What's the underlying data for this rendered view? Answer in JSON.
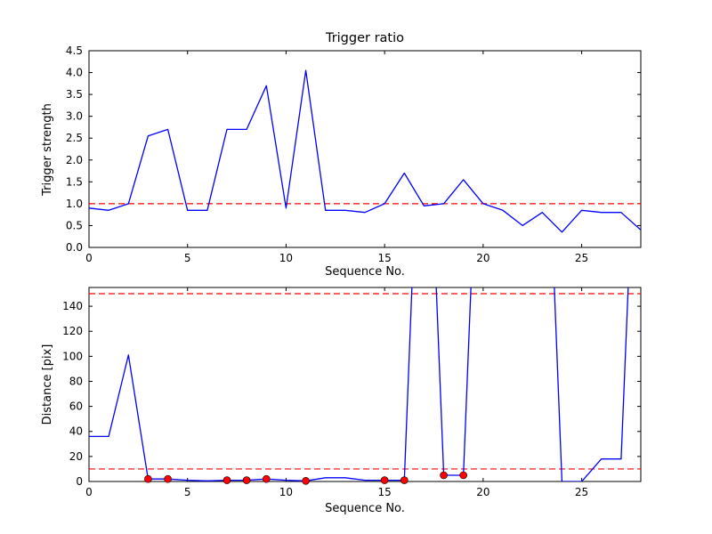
{
  "chart_data": [
    {
      "type": "line",
      "title": "Trigger ratio",
      "xlabel": "Sequence No.",
      "ylabel": "Trigger strength",
      "xlim": [
        0,
        28
      ],
      "ylim": [
        0,
        4.5
      ],
      "xticks": [
        0,
        5,
        10,
        15,
        20,
        25
      ],
      "xtick_labels": [
        "0",
        "5",
        "10",
        "15",
        "20",
        "25"
      ],
      "yticks": [
        0,
        0.5,
        1,
        1.5,
        2,
        2.5,
        3,
        3.5,
        4,
        4.5
      ],
      "ytick_labels": [
        "0.0",
        "0.5",
        "1.0",
        "1.5",
        "2.0",
        "2.5",
        "3.0",
        "3.5",
        "4.0",
        "4.5"
      ],
      "grid": false,
      "line_color": "#0000ff",
      "threshold_color": "#ff0000",
      "thresholds": [
        1.0
      ],
      "x": [
        0,
        1,
        2,
        3,
        4,
        5,
        6,
        7,
        8,
        9,
        10,
        11,
        12,
        13,
        14,
        15,
        16,
        17,
        18,
        19,
        20,
        21,
        22,
        23,
        24,
        25,
        26,
        27,
        28
      ],
      "values": [
        0.9,
        0.85,
        1.0,
        2.55,
        2.7,
        0.85,
        0.85,
        2.7,
        2.7,
        3.7,
        0.9,
        4.05,
        0.85,
        0.85,
        0.8,
        1.0,
        1.7,
        0.95,
        1.0,
        1.55,
        1.0,
        0.85,
        0.5,
        0.8,
        0.35,
        0.85,
        0.8,
        0.8,
        0.4
      ]
    },
    {
      "type": "line",
      "title": "",
      "xlabel": "Sequence No.",
      "ylabel": "Distance [pix]",
      "xlim": [
        0,
        28
      ],
      "ylim": [
        0,
        155
      ],
      "xticks": [
        0,
        5,
        10,
        15,
        20,
        25
      ],
      "xtick_labels": [
        "0",
        "5",
        "10",
        "15",
        "20",
        "25"
      ],
      "yticks": [
        0,
        20,
        40,
        60,
        80,
        100,
        120,
        140
      ],
      "ytick_labels": [
        "0",
        "20",
        "40",
        "60",
        "80",
        "100",
        "120",
        "140"
      ],
      "grid": false,
      "line_color": "#0000ff",
      "threshold_color": "#ff0000",
      "thresholds": [
        10,
        150
      ],
      "marker_color": "#ff0000",
      "x": [
        0,
        1,
        2,
        3,
        4,
        5,
        6,
        7,
        8,
        9,
        10,
        11,
        12,
        13,
        14,
        15,
        16,
        17,
        18,
        19,
        20,
        21,
        22,
        23,
        24,
        25,
        26,
        27,
        28
      ],
      "values": [
        36,
        36,
        101,
        2,
        2,
        1,
        0.5,
        1,
        1,
        2,
        1,
        0.5,
        3,
        3,
        1,
        1,
        1,
        400,
        5,
        5,
        400,
        400,
        400,
        400,
        0,
        0,
        18,
        18,
        400
      ],
      "markers": [
        [
          3,
          2
        ],
        [
          4,
          2
        ],
        [
          7,
          1
        ],
        [
          8,
          1
        ],
        [
          9,
          2
        ],
        [
          11,
          0.5
        ],
        [
          15,
          1
        ],
        [
          16,
          1
        ],
        [
          18,
          5
        ],
        [
          19,
          5
        ]
      ]
    }
  ]
}
